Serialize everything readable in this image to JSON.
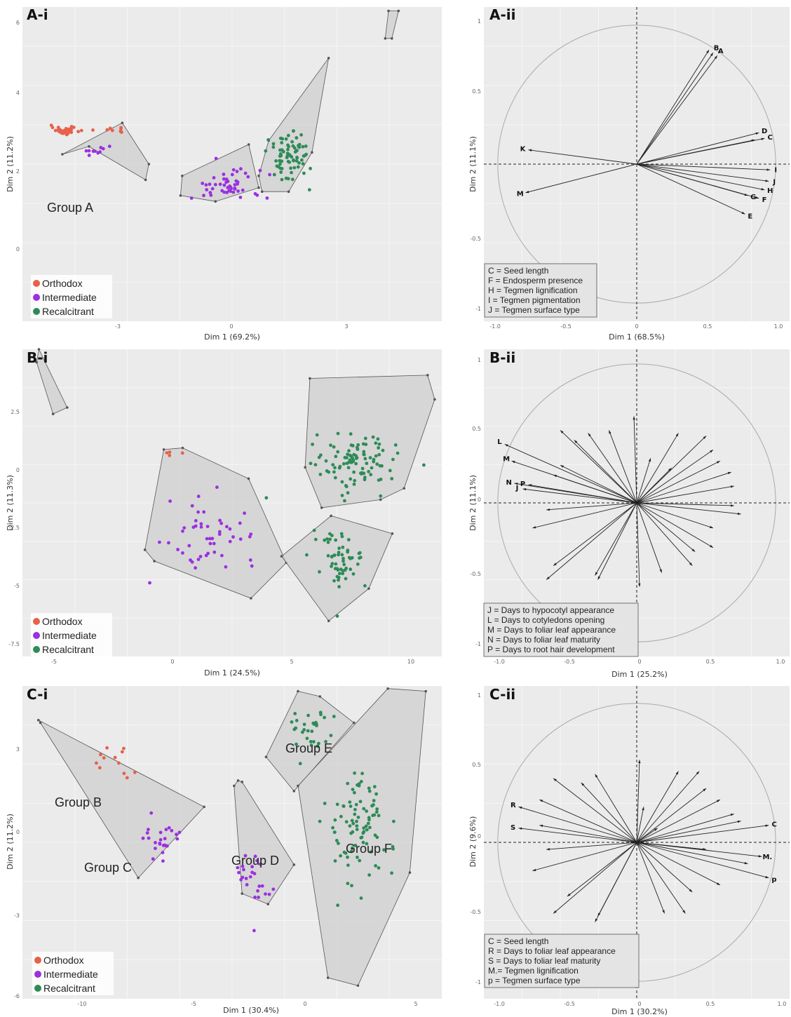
{
  "colors": {
    "orthodox": "#e8604a",
    "intermediate": "#9b30e0",
    "recalcitrant": "#2e8b57",
    "panel_bg": "#ebebeb",
    "hull_fill": "#cfcfcf"
  },
  "legend": [
    "Orthodox",
    "Intermediate",
    "Recalcitrant"
  ],
  "chart_data": [
    {
      "panel": "A-i",
      "type": "scatter",
      "xlabel": "Dim 1 (69.2%)",
      "ylabel": "Dim 2 (11.2%)",
      "xlim": [
        -5.2,
        7.4
      ],
      "ylim": [
        -4.2,
        3.8
      ],
      "xticks": [
        "-3",
        "0",
        "3"
      ],
      "yticks": [
        "6",
        "4",
        "2",
        "0"
      ],
      "group_labels": [
        "Group A"
      ],
      "clusters": [
        {
          "class": "orthodox",
          "n": 40,
          "cx": -3.9,
          "cy": 0.65,
          "sx": 0.35,
          "sy": 0.08
        },
        {
          "class": "orthodox",
          "n": 8,
          "cx": -2.4,
          "cy": 0.7,
          "sx": 0.4,
          "sy": 0.1
        },
        {
          "class": "intermediate",
          "n": 10,
          "cx": -3.0,
          "cy": 0.12,
          "sx": 0.4,
          "sy": 0.1
        },
        {
          "class": "intermediate",
          "n": 50,
          "cx": 0.9,
          "cy": -0.75,
          "sx": 0.9,
          "sy": 0.35
        },
        {
          "class": "recalcitrant",
          "n": 75,
          "cx": 2.85,
          "cy": 0.0,
          "sx": 0.55,
          "sy": 0.6
        }
      ],
      "hulls": [
        {
          "points": [
            [
              -4.0,
              0.05
            ],
            [
              -2.2,
              0.85
            ],
            [
              -1.4,
              -0.2
            ],
            [
              -1.5,
              -0.6
            ],
            [
              -3.2,
              0.25
            ]
          ]
        },
        {
          "points": [
            [
              -0.4,
              -0.5
            ],
            [
              1.6,
              0.3
            ],
            [
              1.9,
              -0.8
            ],
            [
              0.6,
              -1.15
            ],
            [
              -0.45,
              -1.0
            ]
          ]
        },
        {
          "points": [
            [
              1.9,
              -0.5
            ],
            [
              2.2,
              0.4
            ],
            [
              4.0,
              2.5
            ],
            [
              3.5,
              0.1
            ],
            [
              2.8,
              -0.9
            ],
            [
              2.0,
              -0.9
            ]
          ]
        },
        {
          "points": [
            [
              5.8,
              3.7
            ],
            [
              6.1,
              3.7
            ],
            [
              5.9,
              3.0
            ],
            [
              5.7,
              3.0
            ]
          ]
        }
      ]
    },
    {
      "panel": "A-ii",
      "type": "line",
      "xlabel": "Dim 1 (68.5%)",
      "ylabel": "Dim 2 (11.1%)",
      "xlim": [
        -1.1,
        1.1
      ],
      "ylim": [
        -1.1,
        1.1
      ],
      "xticks": [
        "-1.0",
        "-0.5",
        "0",
        "0.5",
        "1.0"
      ],
      "yticks": [
        "1",
        "0.5",
        "-0.5",
        "-1"
      ],
      "vectors": [
        {
          "x": 0.55,
          "y": 0.78,
          "label": "B"
        },
        {
          "x": 0.58,
          "y": 0.76,
          "label": "A"
        },
        {
          "x": 0.52,
          "y": 0.8,
          "label": ""
        },
        {
          "x": 0.88,
          "y": 0.22,
          "label": "D"
        },
        {
          "x": 0.92,
          "y": 0.18,
          "label": "C"
        },
        {
          "x": 0.85,
          "y": 0.17,
          "label": ""
        },
        {
          "x": 0.96,
          "y": -0.04,
          "label": "I"
        },
        {
          "x": 0.95,
          "y": -0.12,
          "label": "J"
        },
        {
          "x": 0.92,
          "y": -0.18,
          "label": "H"
        },
        {
          "x": 0.88,
          "y": -0.24,
          "label": "F"
        },
        {
          "x": 0.8,
          "y": -0.22,
          "label": "G"
        },
        {
          "x": 0.78,
          "y": -0.35,
          "label": "E"
        },
        {
          "x": -0.78,
          "y": 0.1,
          "label": "K"
        },
        {
          "x": -0.8,
          "y": -0.2,
          "label": "M"
        }
      ],
      "key": [
        "C = Seed length",
        "F = Endosperm presence",
        "H = Tegmen lignification",
        "I = Tegmen pigmentation",
        "J = Tegmen surface type"
      ]
    },
    {
      "panel": "B-i",
      "type": "scatter",
      "xlabel": "Dim 1 (24.5%)",
      "ylabel": "Dim 2 (11.3%)",
      "xlim": [
        -6.2,
        11.6
      ],
      "ylim": [
        -13.2,
        5.8
      ],
      "xticks": [
        "-5",
        "0",
        "5",
        "10"
      ],
      "yticks": [
        "2.5",
        "0",
        "-2.5",
        "-5",
        "-7.5"
      ],
      "clusters": [
        {
          "class": "orthodox",
          "n": 4,
          "cx": 0.2,
          "cy": -0.6,
          "sx": 0.4,
          "sy": 0.3
        },
        {
          "class": "intermediate",
          "n": 50,
          "cx": 1.8,
          "cy": -5.5,
          "sx": 1.6,
          "sy": 1.5
        },
        {
          "class": "recalcitrant",
          "n": 100,
          "cx": 8.0,
          "cy": -1.2,
          "sx": 1.5,
          "sy": 1.5
        },
        {
          "class": "recalcitrant",
          "n": 60,
          "cx": 7.3,
          "cy": -7.3,
          "sx": 1.0,
          "sy": 1.4
        }
      ],
      "hulls": [
        {
          "points": [
            [
              -5.5,
              5.8
            ],
            [
              -4.3,
              2.2
            ],
            [
              -4.9,
              1.8
            ],
            [
              -5.6,
              5.0
            ]
          ]
        },
        {
          "points": [
            [
              -0.2,
              -0.4
            ],
            [
              0.6,
              -0.3
            ],
            [
              3.4,
              -2.2
            ],
            [
              5.0,
              -7.4
            ],
            [
              3.5,
              -9.6
            ],
            [
              -0.6,
              -7.3
            ],
            [
              -1.0,
              -6.6
            ]
          ]
        },
        {
          "points": [
            [
              6.0,
              4.0
            ],
            [
              11.0,
              4.2
            ],
            [
              11.3,
              2.7
            ],
            [
              10.0,
              -2.8
            ],
            [
              9.0,
              -3.5
            ],
            [
              6.5,
              -4.0
            ],
            [
              5.8,
              -1.5
            ]
          ]
        },
        {
          "points": [
            [
              6.9,
              -4.5
            ],
            [
              9.5,
              -5.6
            ],
            [
              8.5,
              -9.0
            ],
            [
              6.8,
              -11.0
            ],
            [
              4.8,
              -7.0
            ]
          ]
        }
      ]
    },
    {
      "panel": "B-ii",
      "type": "line",
      "xlabel": "Dim 1 (25.2%)",
      "ylabel": "Dim 2 (11.1%)",
      "xlim": [
        -1.1,
        1.1
      ],
      "ylim": [
        -1.1,
        1.1
      ],
      "xticks": [
        "-1.0",
        "-0.5",
        "0",
        "0.5",
        "1.0"
      ],
      "yticks": [
        "1",
        "0.5",
        "0",
        "-0.5",
        "-1"
      ],
      "vectors": [
        {
          "x": -0.95,
          "y": 0.42,
          "label": "L"
        },
        {
          "x": -0.9,
          "y": 0.3,
          "label": "M"
        },
        {
          "x": -0.88,
          "y": 0.14,
          "label": "N"
        },
        {
          "x": -0.78,
          "y": 0.13,
          "label": "P"
        },
        {
          "x": -0.82,
          "y": 0.1,
          "label": "J"
        },
        {
          "x": -0.55,
          "y": 0.52,
          "label": ""
        },
        {
          "x": -0.35,
          "y": 0.5,
          "label": ""
        },
        {
          "x": -0.2,
          "y": 0.52,
          "label": ""
        },
        {
          "x": -0.45,
          "y": 0.45,
          "label": ""
        },
        {
          "x": -0.55,
          "y": 0.27,
          "label": ""
        },
        {
          "x": -0.6,
          "y": 0.2,
          "label": ""
        },
        {
          "x": -0.65,
          "y": -0.05,
          "label": ""
        },
        {
          "x": -0.75,
          "y": -0.18,
          "label": ""
        },
        {
          "x": -0.6,
          "y": -0.45,
          "label": ""
        },
        {
          "x": -0.65,
          "y": -0.55,
          "label": ""
        },
        {
          "x": -0.3,
          "y": -0.52,
          "label": ""
        },
        {
          "x": -0.28,
          "y": -0.55,
          "label": ""
        },
        {
          "x": -0.02,
          "y": 0.62,
          "label": ""
        },
        {
          "x": 0.02,
          "y": -0.6,
          "label": ""
        },
        {
          "x": 0.18,
          "y": -0.5,
          "label": ""
        },
        {
          "x": 0.3,
          "y": 0.5,
          "label": ""
        },
        {
          "x": 0.5,
          "y": 0.48,
          "label": ""
        },
        {
          "x": 0.55,
          "y": 0.38,
          "label": ""
        },
        {
          "x": 0.6,
          "y": 0.3,
          "label": ""
        },
        {
          "x": 0.68,
          "y": 0.22,
          "label": ""
        },
        {
          "x": 0.7,
          "y": 0.12,
          "label": ""
        },
        {
          "x": 0.7,
          "y": -0.02,
          "label": ""
        },
        {
          "x": 0.75,
          "y": -0.08,
          "label": ""
        },
        {
          "x": 0.55,
          "y": -0.18,
          "label": ""
        },
        {
          "x": 0.55,
          "y": -0.32,
          "label": ""
        },
        {
          "x": 0.42,
          "y": -0.35,
          "label": ""
        },
        {
          "x": 0.4,
          "y": -0.45,
          "label": ""
        },
        {
          "x": 0.1,
          "y": 0.32,
          "label": ""
        },
        {
          "x": 0.25,
          "y": 0.25,
          "label": ""
        }
      ],
      "key": [
        "J = Days to hypocotyl appearance",
        "L = Days to cotyledons opening",
        "M = Days to foliar leaf appearance",
        "N = Days to foliar leaf maturity",
        "P = Days to root hair development"
      ]
    },
    {
      "panel": "C-i",
      "type": "scatter",
      "xlabel": "Dim 1 (30.4%)",
      "ylabel": "Dim 2 (11.2%)",
      "xlim": [
        -13.8,
        7.2
      ],
      "ylim": [
        -7.3,
        4.6
      ],
      "xticks": [
        "-10",
        "-5",
        "0",
        "5"
      ],
      "yticks": [
        "3",
        "0",
        "-3",
        "-6"
      ],
      "group_labels": [
        "Group B",
        "Group C",
        "Group D",
        "Group E",
        "Group F"
      ],
      "clusters": [
        {
          "class": "orthodox",
          "n": 12,
          "cx": -9.2,
          "cy": 1.6,
          "sx": 1.5,
          "sy": 1.0
        },
        {
          "class": "intermediate",
          "n": 25,
          "cx": -6.8,
          "cy": -1.2,
          "sx": 0.7,
          "sy": 0.7
        },
        {
          "class": "intermediate",
          "n": 25,
          "cx": -2.2,
          "cy": -2.8,
          "sx": 0.8,
          "sy": 1.0
        },
        {
          "class": "recalcitrant",
          "n": 30,
          "cx": 0.7,
          "cy": 2.8,
          "sx": 1.0,
          "sy": 0.9
        },
        {
          "class": "recalcitrant",
          "n": 90,
          "cx": 3.0,
          "cy": -0.6,
          "sx": 1.3,
          "sy": 2.0
        }
      ],
      "hulls": [
        {
          "points": [
            [
              -13.0,
              3.3
            ],
            [
              -4.7,
              0.0
            ],
            [
              -8.0,
              -2.7
            ],
            [
              -12.9,
              3.2
            ]
          ]
        },
        {
          "points": [
            [
              -3.0,
              1.0
            ],
            [
              -2.8,
              0.95
            ],
            [
              -0.2,
              -2.2
            ],
            [
              -1.5,
              -3.7
            ],
            [
              -2.8,
              -3.3
            ],
            [
              -3.2,
              0.8
            ]
          ]
        },
        {
          "points": [
            [
              0.0,
              4.4
            ],
            [
              1.1,
              4.2
            ],
            [
              2.8,
              3.2
            ],
            [
              -0.2,
              0.6
            ],
            [
              -1.6,
              1.9
            ]
          ]
        },
        {
          "points": [
            [
              4.5,
              4.5
            ],
            [
              6.4,
              4.4
            ],
            [
              5.6,
              -2.5
            ],
            [
              3.0,
              -6.8
            ],
            [
              1.5,
              -6.5
            ],
            [
              0.0,
              0.8
            ]
          ]
        }
      ]
    },
    {
      "panel": "C-ii",
      "type": "line",
      "xlabel": "Dim 1 (30.2%)",
      "ylabel": "Dim 2 (9.6%)",
      "xlim": [
        -1.1,
        1.1
      ],
      "ylim": [
        -1.1,
        1.1
      ],
      "xticks": [
        "-1.0",
        "-0.5",
        "0",
        "0.5",
        "1.0"
      ],
      "yticks": [
        "1",
        "0.5",
        "0",
        "-0.5",
        "-1"
      ],
      "vectors": [
        {
          "x": 0.95,
          "y": 0.12,
          "label": "C"
        },
        {
          "x": -0.85,
          "y": 0.25,
          "label": "R"
        },
        {
          "x": -0.85,
          "y": 0.1,
          "label": "S"
        },
        {
          "x": 0.9,
          "y": -0.1,
          "label": "M."
        },
        {
          "x": 0.95,
          "y": -0.25,
          "label": "p"
        },
        {
          "x": -0.6,
          "y": 0.45,
          "label": ""
        },
        {
          "x": -0.4,
          "y": 0.42,
          "label": ""
        },
        {
          "x": -0.3,
          "y": 0.48,
          "label": ""
        },
        {
          "x": -0.7,
          "y": 0.3,
          "label": ""
        },
        {
          "x": -0.7,
          "y": 0.12,
          "label": ""
        },
        {
          "x": -0.65,
          "y": -0.05,
          "label": ""
        },
        {
          "x": -0.75,
          "y": -0.2,
          "label": ""
        },
        {
          "x": -0.5,
          "y": -0.38,
          "label": ""
        },
        {
          "x": -0.6,
          "y": -0.5,
          "label": ""
        },
        {
          "x": -0.28,
          "y": -0.52,
          "label": ""
        },
        {
          "x": -0.3,
          "y": -0.56,
          "label": ""
        },
        {
          "x": 0.02,
          "y": 0.58,
          "label": ""
        },
        {
          "x": 0.05,
          "y": 0.25,
          "label": ""
        },
        {
          "x": 0.3,
          "y": 0.5,
          "label": ""
        },
        {
          "x": 0.45,
          "y": 0.5,
          "label": ""
        },
        {
          "x": 0.5,
          "y": 0.38,
          "label": ""
        },
        {
          "x": 0.6,
          "y": 0.3,
          "label": ""
        },
        {
          "x": 0.7,
          "y": 0.2,
          "label": ""
        },
        {
          "x": 0.75,
          "y": 0.15,
          "label": ""
        },
        {
          "x": 0.5,
          "y": -0.05,
          "label": ""
        },
        {
          "x": 0.8,
          "y": -0.15,
          "label": ""
        },
        {
          "x": 0.6,
          "y": -0.3,
          "label": ""
        },
        {
          "x": 0.4,
          "y": -0.35,
          "label": ""
        },
        {
          "x": 0.35,
          "y": -0.5,
          "label": ""
        },
        {
          "x": 0.2,
          "y": -0.5,
          "label": ""
        },
        {
          "x": 0.15,
          "y": 0.1,
          "label": ""
        }
      ],
      "key": [
        "C = Seed length",
        "R = Days to foliar leaf appearance",
        "S = Days to foliar leaf maturity",
        "M.= Tegmen lignification",
        "p = Tegmen surface type"
      ]
    }
  ]
}
